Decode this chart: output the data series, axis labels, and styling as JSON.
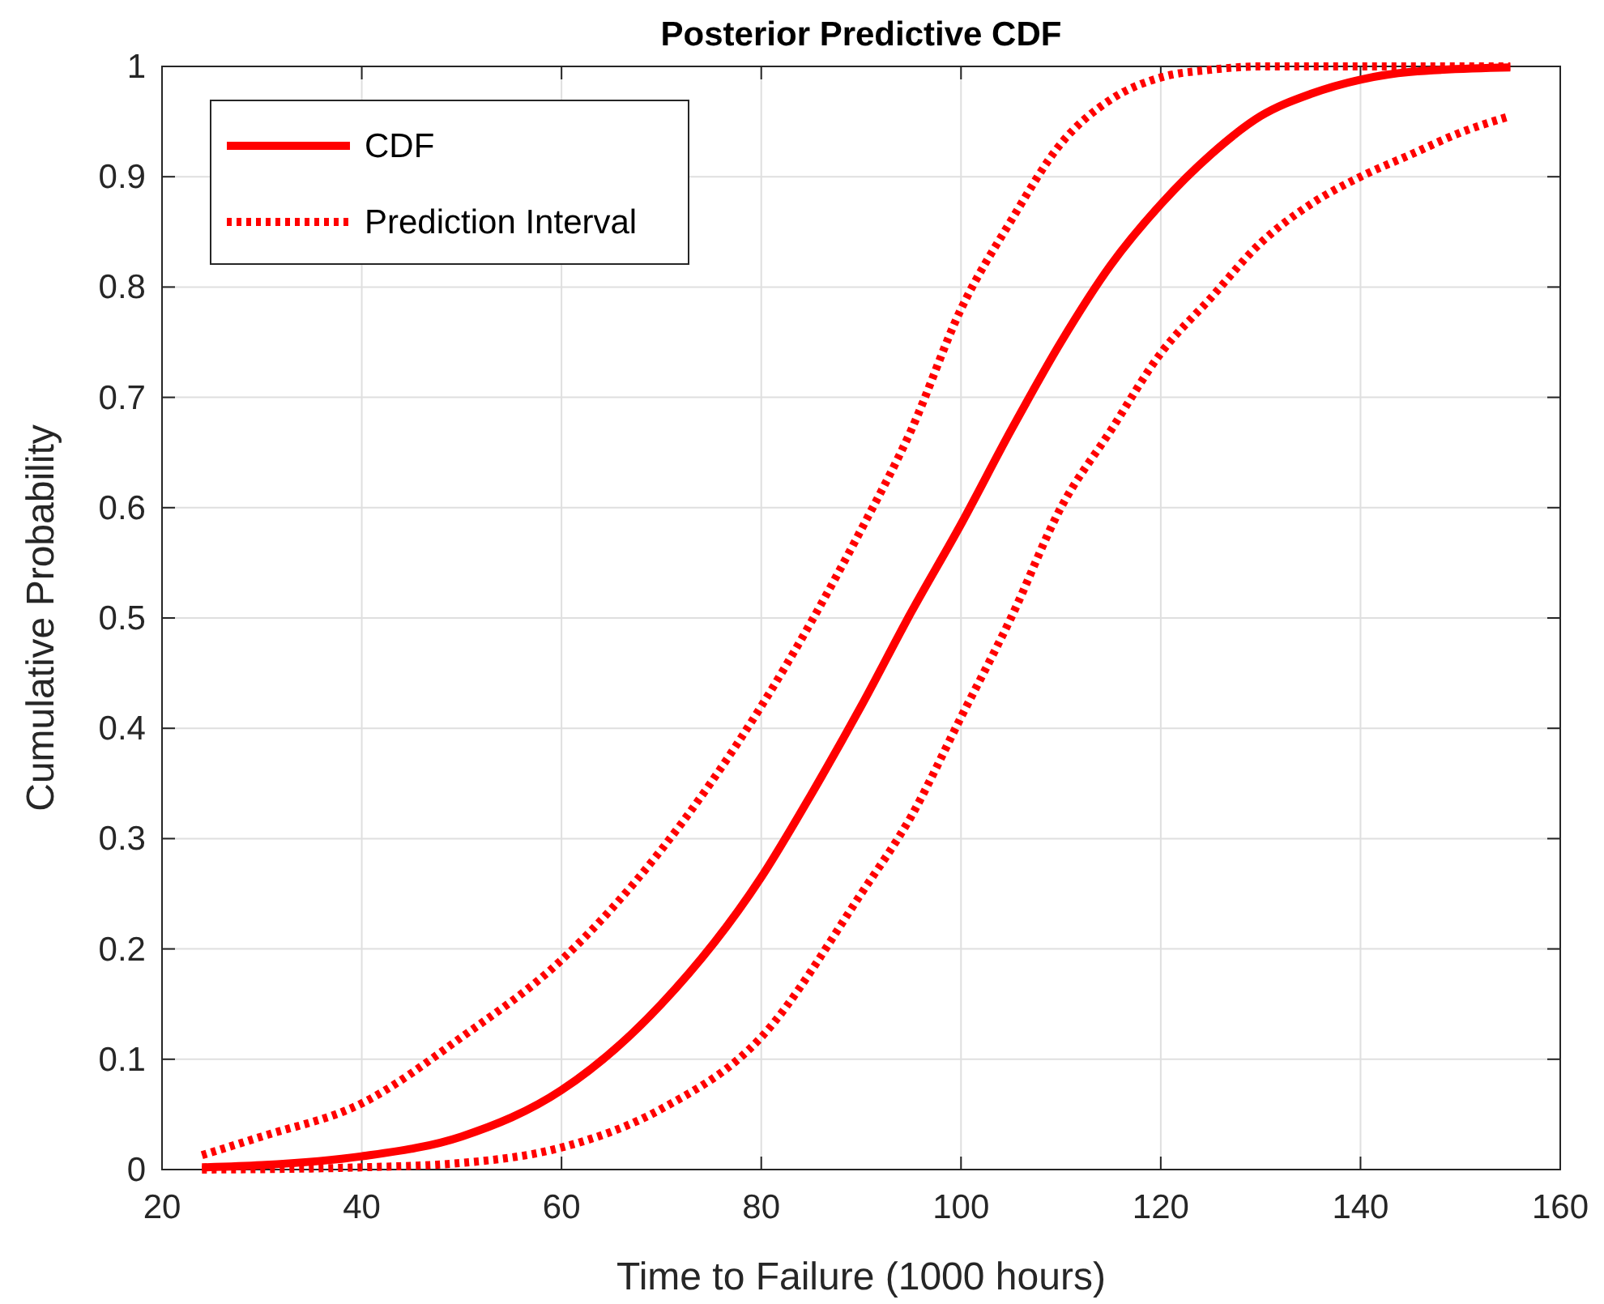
{
  "chart_data": {
    "type": "line",
    "title": "Posterior Predictive CDF",
    "xlabel": "Time to Failure (1000 hours)",
    "ylabel": "Cumulative Probability",
    "xlim": [
      20,
      160
    ],
    "xticks": [
      20,
      40,
      60,
      80,
      100,
      120,
      140,
      160
    ],
    "ylim": [
      0,
      1
    ],
    "yticks": [
      0,
      0.1,
      0.2,
      0.3,
      0.4,
      0.5,
      0.6,
      0.7,
      0.8,
      0.9,
      1
    ],
    "grid": true,
    "legend": "top left",
    "series": [
      {
        "name": "CDF",
        "color": "#ff0000",
        "line_style": "solid",
        "x": [
          24,
          30,
          40,
          50,
          60,
          70,
          80,
          85,
          90,
          95,
          100,
          105,
          110,
          115,
          120,
          125,
          130,
          135,
          140,
          145,
          155
        ],
        "values": [
          0.002,
          0.004,
          0.012,
          0.03,
          0.072,
          0.15,
          0.265,
          0.34,
          0.42,
          0.505,
          0.585,
          0.67,
          0.75,
          0.82,
          0.875,
          0.92,
          0.955,
          0.975,
          0.988,
          0.995,
          0.999
        ]
      },
      {
        "name": "Prediction Interval",
        "color": "#ff0000",
        "line_style": "dotted",
        "x": [
          24,
          30,
          40,
          50,
          60,
          70,
          80,
          90,
          95,
          100,
          105,
          110,
          115,
          120,
          125,
          130,
          155
        ],
        "values": [
          0.013,
          0.03,
          0.06,
          0.12,
          0.19,
          0.29,
          0.42,
          0.58,
          0.67,
          0.78,
          0.86,
          0.93,
          0.97,
          0.99,
          0.997,
          1,
          1
        ]
      },
      {
        "color": "#ff0000",
        "line_style": "dotted",
        "x": [
          24,
          40,
          50,
          60,
          70,
          80,
          90,
          95,
          100,
          105,
          110,
          115,
          120,
          125,
          130,
          135,
          140,
          145,
          150,
          155
        ],
        "values": [
          0,
          0.002,
          0.006,
          0.02,
          0.055,
          0.12,
          0.25,
          0.32,
          0.41,
          0.5,
          0.6,
          0.67,
          0.74,
          0.79,
          0.84,
          0.875,
          0.9,
          0.92,
          0.94,
          0.955
        ]
      }
    ]
  }
}
